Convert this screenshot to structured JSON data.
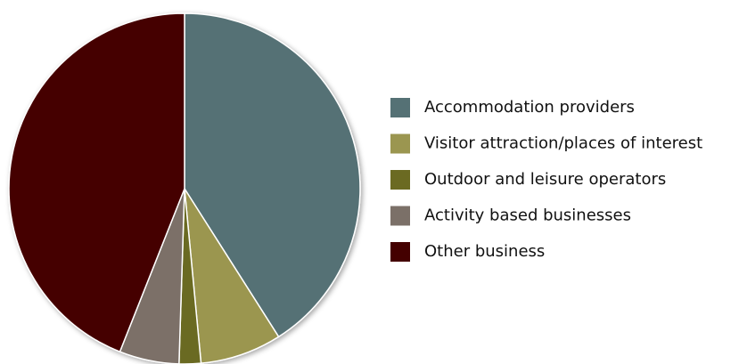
{
  "chart_data": {
    "type": "pie",
    "categories": [
      "Accommodation providers",
      "Visitor attraction/places of interest",
      "Outdoor and leisure operators",
      "Activity based businesses",
      "Other business"
    ],
    "values": [
      41,
      7.5,
      2,
      5.5,
      44
    ],
    "colors": [
      "#557175",
      "#9b9650",
      "#6b6a22",
      "#7b7068",
      "#440000"
    ],
    "legend": "right"
  }
}
